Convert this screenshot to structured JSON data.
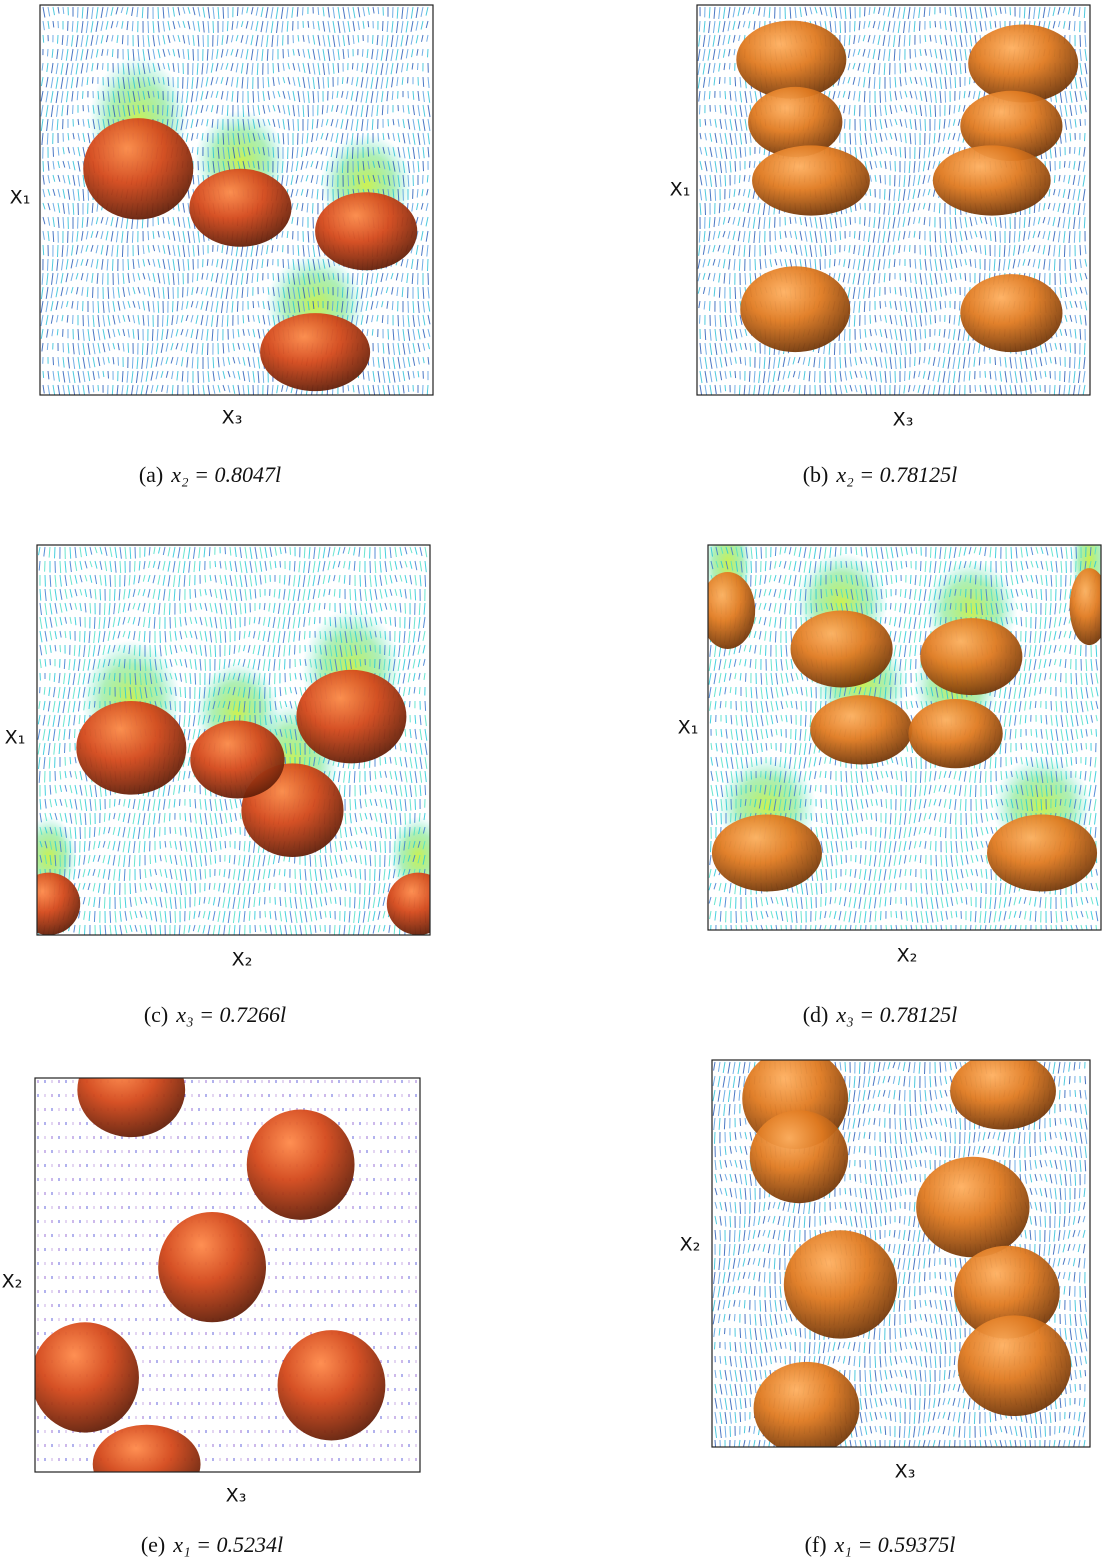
{
  "figure": {
    "panels": [
      {
        "label": "(a)",
        "caption": "x₂ = 0.8047l",
        "x_axis": "X₃",
        "y_axis": "X₁"
      },
      {
        "label": "(b)",
        "caption": "x₂ = 0.78125l",
        "x_axis": "X₃",
        "y_axis": "X₁"
      },
      {
        "label": "(c)",
        "caption": "x₃ = 0.7266l",
        "x_axis": "X₂",
        "y_axis": "X₁"
      },
      {
        "label": "(d)",
        "caption": "x₃ = 0.78125l",
        "x_axis": "X₂",
        "y_axis": "X₁"
      },
      {
        "label": "(e)",
        "caption": "x₁ = 0.5234l",
        "x_axis": "X₃",
        "y_axis": "X₂"
      },
      {
        "label": "(f)",
        "caption": "x₁ = 0.59375l",
        "x_axis": "X₃",
        "y_axis": "X₂"
      }
    ]
  }
}
